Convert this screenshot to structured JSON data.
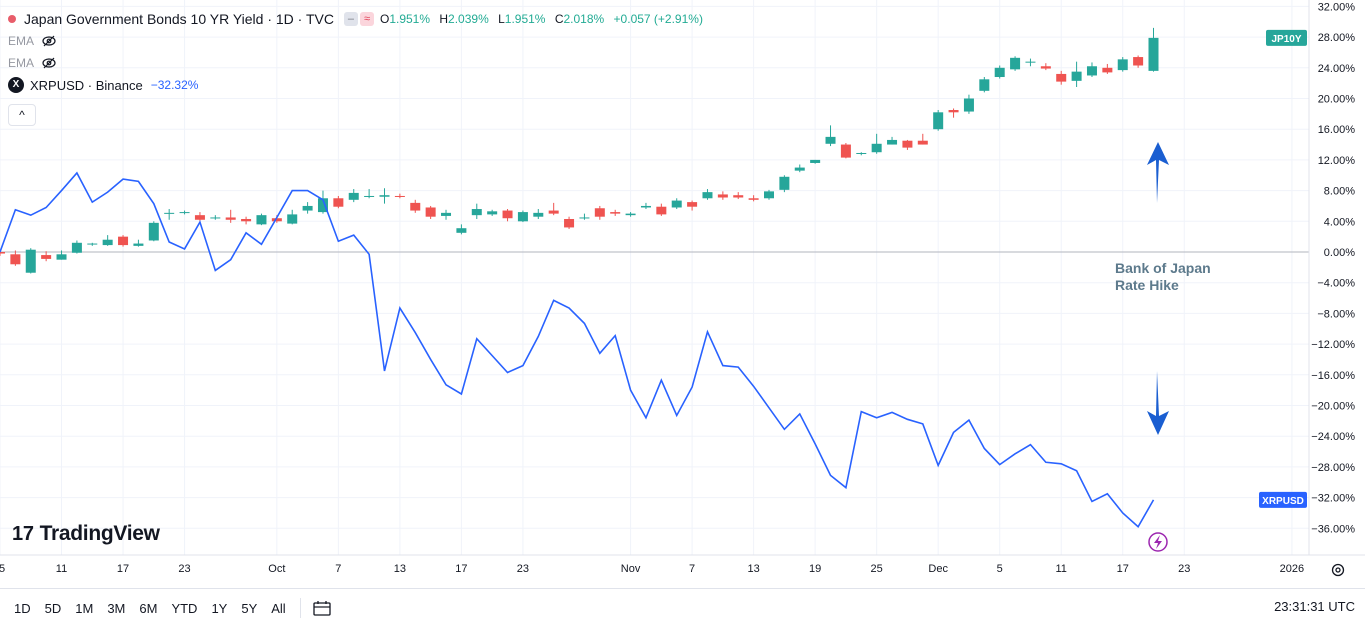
{
  "header": {
    "symbol_title": "Japan Government Bonds 10 YR Yield · 1D · TVC",
    "ohlc": {
      "o_label": "O",
      "o": "1.951%",
      "h_label": "H",
      "h": "2.039%",
      "l_label": "L",
      "l": "1.951%",
      "c_label": "C",
      "c": "2.018%",
      "change": "+0.057 (+2.91%)"
    },
    "indicators": [
      "EMA",
      "EMA"
    ],
    "compare": {
      "name": "XRPUSD · Binance",
      "change": "−32.32%",
      "logo": "X"
    },
    "collapse_glyph": "^"
  },
  "logo": {
    "mark": "17",
    "text": "TradingView"
  },
  "bottom_bar": {
    "ranges": [
      "1D",
      "5D",
      "1M",
      "3M",
      "6M",
      "YTD",
      "1Y",
      "5Y",
      "All"
    ],
    "time": "23:31:31 UTC"
  },
  "chart_data": {
    "type": "candlestick+line",
    "ylim": [
      -39,
      33
    ],
    "y_ticks": [
      32,
      28,
      24,
      20,
      16,
      12,
      8,
      4,
      0,
      -4,
      -8,
      -12,
      -16,
      -20,
      -24,
      -28,
      -32,
      -36
    ],
    "y_tick_labels": [
      "32.00%",
      "28.00%",
      "24.00%",
      "20.00%",
      "16.00%",
      "12.00%",
      "8.00%",
      "4.00%",
      "0.00%",
      "−4.00%",
      "−8.00%",
      "−12.00%",
      "−16.00%",
      "−20.00%",
      "−24.00%",
      "−28.00%",
      "−32.00%",
      "−36.00%"
    ],
    "x_tick_labels": [
      {
        "label": "5",
        "i": 0
      },
      {
        "label": "11",
        "i": 4
      },
      {
        "label": "17",
        "i": 8
      },
      {
        "label": "23",
        "i": 12
      },
      {
        "label": "Oct",
        "i": 18
      },
      {
        "label": "7",
        "i": 22
      },
      {
        "label": "13",
        "i": 26
      },
      {
        "label": "17",
        "i": 30
      },
      {
        "label": "23",
        "i": 34
      },
      {
        "label": "Nov",
        "i": 41
      },
      {
        "label": "7",
        "i": 45
      },
      {
        "label": "13",
        "i": 49
      },
      {
        "label": "19",
        "i": 53
      },
      {
        "label": "25",
        "i": 57
      },
      {
        "label": "Dec",
        "i": 61
      },
      {
        "label": "5",
        "i": 65
      },
      {
        "label": "11",
        "i": 69
      },
      {
        "label": "17",
        "i": 73
      },
      {
        "label": "23",
        "i": 77
      },
      {
        "label": "2026",
        "i": 84
      }
    ],
    "x_count": 87,
    "candle_series": {
      "name": "JP10Y",
      "up_color": "#26a69a",
      "down_color": "#ef5350",
      "candles": [
        {
          "i": 0,
          "o": 0.0,
          "h": 0.3,
          "l": -0.5,
          "c": -0.2
        },
        {
          "i": 1,
          "o": -0.3,
          "h": 0.2,
          "l": -1.8,
          "c": -1.6
        },
        {
          "i": 2,
          "o": -2.7,
          "h": 0.5,
          "l": -2.8,
          "c": 0.3
        },
        {
          "i": 3,
          "o": -0.4,
          "h": 0.1,
          "l": -1.2,
          "c": -0.9
        },
        {
          "i": 4,
          "o": -1.0,
          "h": 0.2,
          "l": -1.0,
          "c": -0.3
        },
        {
          "i": 5,
          "o": -0.1,
          "h": 1.5,
          "l": -0.2,
          "c": 1.2
        },
        {
          "i": 6,
          "o": 1.0,
          "h": 1.2,
          "l": 0.8,
          "c": 1.1
        },
        {
          "i": 7,
          "o": 0.9,
          "h": 2.2,
          "l": 0.8,
          "c": 1.6
        },
        {
          "i": 8,
          "o": 2.0,
          "h": 2.2,
          "l": 0.7,
          "c": 0.9
        },
        {
          "i": 9,
          "o": 0.8,
          "h": 1.6,
          "l": 0.7,
          "c": 1.1
        },
        {
          "i": 10,
          "o": 1.5,
          "h": 4.0,
          "l": 1.4,
          "c": 3.8
        },
        {
          "i": 11,
          "o": 5.0,
          "h": 5.6,
          "l": 4.2,
          "c": 5.1
        },
        {
          "i": 12,
          "o": 5.1,
          "h": 5.4,
          "l": 4.9,
          "c": 5.2
        },
        {
          "i": 13,
          "o": 4.8,
          "h": 5.2,
          "l": 4.0,
          "c": 4.2
        },
        {
          "i": 14,
          "o": 4.4,
          "h": 4.8,
          "l": 4.2,
          "c": 4.5
        },
        {
          "i": 15,
          "o": 4.5,
          "h": 5.5,
          "l": 3.8,
          "c": 4.2
        },
        {
          "i": 16,
          "o": 4.3,
          "h": 4.6,
          "l": 3.6,
          "c": 4.0
        },
        {
          "i": 17,
          "o": 3.6,
          "h": 5.0,
          "l": 3.5,
          "c": 4.8
        },
        {
          "i": 18,
          "o": 4.4,
          "h": 4.8,
          "l": 3.8,
          "c": 4.0
        },
        {
          "i": 19,
          "o": 3.7,
          "h": 5.5,
          "l": 3.6,
          "c": 4.9
        },
        {
          "i": 20,
          "o": 5.4,
          "h": 6.5,
          "l": 5.0,
          "c": 6.0
        },
        {
          "i": 21,
          "o": 5.2,
          "h": 8.0,
          "l": 5.0,
          "c": 7.0
        },
        {
          "i": 22,
          "o": 7.0,
          "h": 7.3,
          "l": 5.7,
          "c": 5.9
        },
        {
          "i": 23,
          "o": 6.8,
          "h": 8.2,
          "l": 6.5,
          "c": 7.7
        },
        {
          "i": 24,
          "o": 7.2,
          "h": 8.2,
          "l": 7.0,
          "c": 7.3
        },
        {
          "i": 25,
          "o": 7.2,
          "h": 8.3,
          "l": 6.3,
          "c": 7.4
        },
        {
          "i": 26,
          "o": 7.3,
          "h": 7.6,
          "l": 7.0,
          "c": 7.2
        },
        {
          "i": 27,
          "o": 6.4,
          "h": 6.8,
          "l": 5.1,
          "c": 5.4
        },
        {
          "i": 28,
          "o": 5.8,
          "h": 6.0,
          "l": 4.3,
          "c": 4.6
        },
        {
          "i": 29,
          "o": 4.7,
          "h": 5.5,
          "l": 4.2,
          "c": 5.1
        },
        {
          "i": 30,
          "o": 2.5,
          "h": 3.6,
          "l": 2.3,
          "c": 3.1
        },
        {
          "i": 31,
          "o": 4.8,
          "h": 6.3,
          "l": 4.3,
          "c": 5.6
        },
        {
          "i": 32,
          "o": 4.9,
          "h": 5.5,
          "l": 4.7,
          "c": 5.3
        },
        {
          "i": 33,
          "o": 5.4,
          "h": 5.6,
          "l": 4.0,
          "c": 4.4
        },
        {
          "i": 34,
          "o": 4.0,
          "h": 5.4,
          "l": 3.9,
          "c": 5.2
        },
        {
          "i": 35,
          "o": 4.6,
          "h": 5.6,
          "l": 4.3,
          "c": 5.1
        },
        {
          "i": 36,
          "o": 5.4,
          "h": 6.4,
          "l": 4.8,
          "c": 5.0
        },
        {
          "i": 37,
          "o": 4.3,
          "h": 4.6,
          "l": 3.0,
          "c": 3.2
        },
        {
          "i": 38,
          "o": 4.5,
          "h": 5.0,
          "l": 4.2,
          "c": 4.5
        },
        {
          "i": 39,
          "o": 5.7,
          "h": 6.0,
          "l": 4.2,
          "c": 4.6
        },
        {
          "i": 40,
          "o": 5.2,
          "h": 5.5,
          "l": 4.7,
          "c": 5.0
        },
        {
          "i": 41,
          "o": 4.8,
          "h": 5.2,
          "l": 4.6,
          "c": 5.0
        },
        {
          "i": 42,
          "o": 5.8,
          "h": 6.4,
          "l": 5.6,
          "c": 6.0
        },
        {
          "i": 43,
          "o": 5.9,
          "h": 6.3,
          "l": 4.7,
          "c": 4.9
        },
        {
          "i": 44,
          "o": 5.8,
          "h": 7.0,
          "l": 5.6,
          "c": 6.7
        },
        {
          "i": 45,
          "o": 6.5,
          "h": 6.7,
          "l": 5.4,
          "c": 5.9
        },
        {
          "i": 46,
          "o": 7.0,
          "h": 8.2,
          "l": 6.8,
          "c": 7.8
        },
        {
          "i": 47,
          "o": 7.5,
          "h": 7.9,
          "l": 6.8,
          "c": 7.1
        },
        {
          "i": 48,
          "o": 7.4,
          "h": 7.8,
          "l": 6.9,
          "c": 7.1
        },
        {
          "i": 49,
          "o": 7.0,
          "h": 7.4,
          "l": 6.6,
          "c": 6.8
        },
        {
          "i": 50,
          "o": 7.0,
          "h": 8.1,
          "l": 6.8,
          "c": 7.9
        },
        {
          "i": 51,
          "o": 8.1,
          "h": 10.0,
          "l": 7.8,
          "c": 9.8
        },
        {
          "i": 52,
          "o": 10.6,
          "h": 11.4,
          "l": 10.4,
          "c": 11.0
        },
        {
          "i": 53,
          "o": 11.6,
          "h": 12.0,
          "l": 11.5,
          "c": 12.0
        },
        {
          "i": 54,
          "o": 14.1,
          "h": 16.5,
          "l": 13.8,
          "c": 15.0
        },
        {
          "i": 55,
          "o": 14.0,
          "h": 14.2,
          "l": 12.2,
          "c": 12.3
        },
        {
          "i": 56,
          "o": 12.8,
          "h": 13.0,
          "l": 12.6,
          "c": 12.9
        },
        {
          "i": 57,
          "o": 13.0,
          "h": 15.4,
          "l": 12.8,
          "c": 14.1
        },
        {
          "i": 58,
          "o": 14.0,
          "h": 15.0,
          "l": 14.0,
          "c": 14.6
        },
        {
          "i": 59,
          "o": 14.5,
          "h": 14.6,
          "l": 13.3,
          "c": 13.6
        },
        {
          "i": 60,
          "o": 14.5,
          "h": 15.4,
          "l": 14.0,
          "c": 14.0
        },
        {
          "i": 61,
          "o": 16.0,
          "h": 18.5,
          "l": 15.8,
          "c": 18.2
        },
        {
          "i": 62,
          "o": 18.5,
          "h": 18.7,
          "l": 17.5,
          "c": 18.2
        },
        {
          "i": 63,
          "o": 18.3,
          "h": 20.5,
          "l": 18.0,
          "c": 20.0
        },
        {
          "i": 64,
          "o": 21.0,
          "h": 22.8,
          "l": 20.8,
          "c": 22.5
        },
        {
          "i": 65,
          "o": 22.8,
          "h": 24.3,
          "l": 22.6,
          "c": 24.0
        },
        {
          "i": 66,
          "o": 23.8,
          "h": 25.5,
          "l": 23.6,
          "c": 25.3
        },
        {
          "i": 67,
          "o": 24.7,
          "h": 25.2,
          "l": 24.2,
          "c": 24.8
        },
        {
          "i": 68,
          "o": 24.2,
          "h": 24.6,
          "l": 23.7,
          "c": 23.9
        },
        {
          "i": 69,
          "o": 23.2,
          "h": 23.6,
          "l": 21.8,
          "c": 22.2
        },
        {
          "i": 70,
          "o": 22.3,
          "h": 24.8,
          "l": 21.5,
          "c": 23.5
        },
        {
          "i": 71,
          "o": 23.0,
          "h": 24.7,
          "l": 22.8,
          "c": 24.2
        },
        {
          "i": 72,
          "o": 24.0,
          "h": 24.5,
          "l": 23.2,
          "c": 23.4
        },
        {
          "i": 73,
          "o": 23.7,
          "h": 25.4,
          "l": 23.5,
          "c": 25.1
        },
        {
          "i": 74,
          "o": 25.4,
          "h": 25.6,
          "l": 24.0,
          "c": 24.3
        },
        {
          "i": 75,
          "o": 23.6,
          "h": 29.2,
          "l": 23.5,
          "c": 27.9
        }
      ]
    },
    "line_series": {
      "name": "XRPUSD",
      "color": "#2962ff",
      "points": [
        {
          "i": 0,
          "y": 0.0
        },
        {
          "i": 1,
          "y": 5.5
        },
        {
          "i": 2,
          "y": 4.8
        },
        {
          "i": 3,
          "y": 5.8
        },
        {
          "i": 4,
          "y": 8.0
        },
        {
          "i": 5,
          "y": 10.3
        },
        {
          "i": 6,
          "y": 6.5
        },
        {
          "i": 7,
          "y": 7.8
        },
        {
          "i": 8,
          "y": 9.5
        },
        {
          "i": 9,
          "y": 9.2
        },
        {
          "i": 10,
          "y": 6.3
        },
        {
          "i": 11,
          "y": 1.3
        },
        {
          "i": 12,
          "y": 0.4
        },
        {
          "i": 13,
          "y": 3.9
        },
        {
          "i": 14,
          "y": -2.4
        },
        {
          "i": 15,
          "y": -1.0
        },
        {
          "i": 16,
          "y": 2.5
        },
        {
          "i": 17,
          "y": 1.0
        },
        {
          "i": 18,
          "y": 4.5
        },
        {
          "i": 19,
          "y": 8.0
        },
        {
          "i": 20,
          "y": 8.0
        },
        {
          "i": 21,
          "y": 6.8
        },
        {
          "i": 22,
          "y": 1.4
        },
        {
          "i": 23,
          "y": 2.2
        },
        {
          "i": 24,
          "y": -0.3
        },
        {
          "i": 25,
          "y": -15.5
        },
        {
          "i": 26,
          "y": -7.3
        },
        {
          "i": 27,
          "y": -10.5
        },
        {
          "i": 28,
          "y": -14.0
        },
        {
          "i": 29,
          "y": -17.3
        },
        {
          "i": 30,
          "y": -18.5
        },
        {
          "i": 31,
          "y": -11.3
        },
        {
          "i": 32,
          "y": -13.5
        },
        {
          "i": 33,
          "y": -15.7
        },
        {
          "i": 34,
          "y": -14.8
        },
        {
          "i": 35,
          "y": -11.0
        },
        {
          "i": 36,
          "y": -6.3
        },
        {
          "i": 37,
          "y": -7.3
        },
        {
          "i": 38,
          "y": -9.3
        },
        {
          "i": 39,
          "y": -13.2
        },
        {
          "i": 40,
          "y": -10.9
        },
        {
          "i": 41,
          "y": -18.0
        },
        {
          "i": 42,
          "y": -21.6
        },
        {
          "i": 43,
          "y": -16.7
        },
        {
          "i": 44,
          "y": -21.3
        },
        {
          "i": 45,
          "y": -17.6
        },
        {
          "i": 46,
          "y": -10.4
        },
        {
          "i": 47,
          "y": -14.8
        },
        {
          "i": 48,
          "y": -15.0
        },
        {
          "i": 49,
          "y": -17.5
        },
        {
          "i": 50,
          "y": -20.3
        },
        {
          "i": 51,
          "y": -23.1
        },
        {
          "i": 52,
          "y": -21.1
        },
        {
          "i": 53,
          "y": -25.0
        },
        {
          "i": 54,
          "y": -29.1
        },
        {
          "i": 55,
          "y": -30.7
        },
        {
          "i": 56,
          "y": -20.8
        },
        {
          "i": 57,
          "y": -21.6
        },
        {
          "i": 58,
          "y": -20.9
        },
        {
          "i": 59,
          "y": -21.8
        },
        {
          "i": 60,
          "y": -22.4
        },
        {
          "i": 61,
          "y": -27.8
        },
        {
          "i": 62,
          "y": -23.5
        },
        {
          "i": 63,
          "y": -21.9
        },
        {
          "i": 64,
          "y": -25.6
        },
        {
          "i": 65,
          "y": -27.7
        },
        {
          "i": 66,
          "y": -26.3
        },
        {
          "i": 67,
          "y": -25.1
        },
        {
          "i": 68,
          "y": -27.4
        },
        {
          "i": 69,
          "y": -27.6
        },
        {
          "i": 70,
          "y": -28.5
        },
        {
          "i": 71,
          "y": -32.5
        },
        {
          "i": 72,
          "y": -31.5
        },
        {
          "i": 73,
          "y": -34.0
        },
        {
          "i": 74,
          "y": -35.8
        },
        {
          "i": 75,
          "y": -32.3
        }
      ]
    },
    "price_labels": [
      {
        "text": "JP10Y",
        "y": 27.9,
        "color": "#26a69a"
      },
      {
        "text": "XRPUSD",
        "y": -32.3,
        "color": "#2962ff"
      }
    ],
    "annotation": {
      "text_lines": [
        "Bank of Japan",
        "Rate Hike"
      ],
      "color": "#5d7a8c",
      "arrow_color": "#1a5ed1"
    },
    "grid": true
  }
}
